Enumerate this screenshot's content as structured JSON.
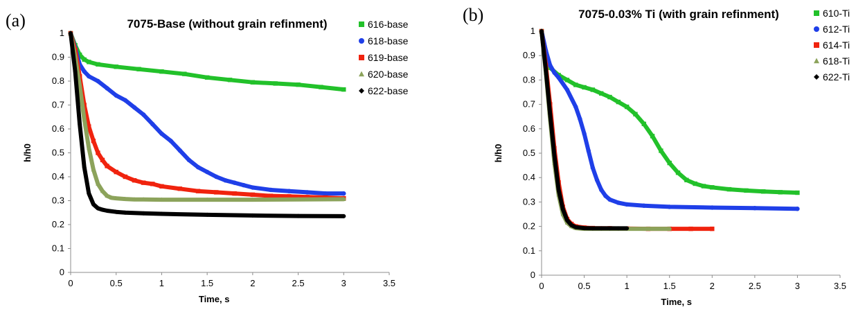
{
  "chart_data": [
    {
      "panel_label": "(a)",
      "type": "scatter",
      "title": "7075-Base (without grain refinment)",
      "xlabel": "Time, s",
      "ylabel": "h/h0",
      "xlim": [
        0,
        3.5
      ],
      "ylim": [
        0,
        1
      ],
      "xticks": [
        "0",
        "0.5",
        "1",
        "1.5",
        "2",
        "2.5",
        "3",
        "3.5"
      ],
      "yticks": [
        "0",
        "0.1",
        "0.2",
        "0.3",
        "0.4",
        "0.5",
        "0.6",
        "0.7",
        "0.8",
        "0.9",
        "1"
      ],
      "grid": false,
      "legend_position": "right",
      "series": [
        {
          "name": "616-base",
          "color": "#22c12a",
          "marker": "square",
          "x": [
            0,
            0.05,
            0.1,
            0.15,
            0.2,
            0.3,
            0.5,
            0.75,
            1.0,
            1.25,
            1.5,
            1.75,
            2.0,
            2.25,
            2.5,
            2.75,
            3.0
          ],
          "y": [
            1,
            0.95,
            0.91,
            0.89,
            0.88,
            0.87,
            0.86,
            0.85,
            0.84,
            0.83,
            0.815,
            0.805,
            0.795,
            0.79,
            0.785,
            0.775,
            0.765
          ]
        },
        {
          "name": "618-base",
          "color": "#1f3fe8",
          "marker": "circle",
          "x": [
            0,
            0.05,
            0.1,
            0.15,
            0.2,
            0.3,
            0.4,
            0.5,
            0.6,
            0.7,
            0.8,
            0.9,
            1.0,
            1.1,
            1.2,
            1.3,
            1.4,
            1.5,
            1.6,
            1.7,
            1.8,
            1.9,
            2.0,
            2.2,
            2.4,
            2.6,
            2.8,
            3.0
          ],
          "y": [
            1,
            0.94,
            0.87,
            0.84,
            0.82,
            0.8,
            0.77,
            0.74,
            0.72,
            0.69,
            0.66,
            0.62,
            0.58,
            0.55,
            0.51,
            0.47,
            0.44,
            0.42,
            0.4,
            0.385,
            0.375,
            0.365,
            0.355,
            0.345,
            0.34,
            0.335,
            0.33,
            0.33
          ]
        },
        {
          "name": "619-base",
          "color": "#f0230e",
          "marker": "square",
          "x": [
            0,
            0.05,
            0.1,
            0.15,
            0.2,
            0.25,
            0.3,
            0.35,
            0.4,
            0.5,
            0.6,
            0.7,
            0.8,
            0.9,
            1.0,
            1.2,
            1.4,
            1.6,
            1.8,
            2.0,
            2.2,
            2.4,
            2.6,
            2.8,
            3.0
          ],
          "y": [
            1,
            0.93,
            0.82,
            0.7,
            0.61,
            0.55,
            0.5,
            0.47,
            0.445,
            0.42,
            0.4,
            0.385,
            0.375,
            0.37,
            0.36,
            0.35,
            0.34,
            0.335,
            0.33,
            0.325,
            0.32,
            0.318,
            0.315,
            0.313,
            0.31
          ]
        },
        {
          "name": "620-base",
          "color": "#8ca35b",
          "marker": "triangle",
          "x": [
            0,
            0.05,
            0.1,
            0.15,
            0.2,
            0.25,
            0.3,
            0.35,
            0.4,
            0.45,
            0.5,
            0.6,
            0.7,
            0.8,
            1.0,
            1.5,
            2.0,
            2.5,
            3.0
          ],
          "y": [
            1,
            0.9,
            0.78,
            0.64,
            0.52,
            0.43,
            0.37,
            0.34,
            0.32,
            0.312,
            0.31,
            0.307,
            0.305,
            0.305,
            0.304,
            0.304,
            0.304,
            0.305,
            0.306
          ]
        },
        {
          "name": "622-base",
          "color": "#000000",
          "marker": "diamond",
          "x": [
            0,
            0.05,
            0.1,
            0.15,
            0.2,
            0.25,
            0.3,
            0.35,
            0.4,
            0.5,
            0.6,
            0.8,
            1.0,
            1.5,
            2.0,
            2.5,
            3.0
          ],
          "y": [
            1,
            0.84,
            0.62,
            0.44,
            0.33,
            0.285,
            0.268,
            0.262,
            0.258,
            0.253,
            0.25,
            0.247,
            0.245,
            0.241,
            0.238,
            0.236,
            0.235
          ]
        }
      ]
    },
    {
      "panel_label": "(b)",
      "type": "scatter",
      "title": "7075-0.03% Ti (with grain refinment)",
      "xlabel": "Time, s",
      "ylabel": "h/h0",
      "xlim": [
        0,
        3.5
      ],
      "ylim": [
        0,
        1
      ],
      "xticks": [
        "0",
        "0.5",
        "1",
        "1.5",
        "2",
        "2.5",
        "3",
        "3.5"
      ],
      "yticks": [
        "0",
        "0.1",
        "0.2",
        "0.3",
        "0.4",
        "0.5",
        "0.6",
        "0.7",
        "0.8",
        "0.9",
        "1"
      ],
      "grid": false,
      "legend_position": "right",
      "series": [
        {
          "name": "610-Ti",
          "color": "#22c12a",
          "marker": "square",
          "x": [
            0,
            0.05,
            0.1,
            0.2,
            0.3,
            0.4,
            0.5,
            0.6,
            0.7,
            0.8,
            0.9,
            1.0,
            1.1,
            1.2,
            1.3,
            1.4,
            1.5,
            1.6,
            1.7,
            1.8,
            1.9,
            2.0,
            2.2,
            2.4,
            2.6,
            2.8,
            3.0
          ],
          "y": [
            1,
            0.9,
            0.85,
            0.82,
            0.8,
            0.78,
            0.77,
            0.76,
            0.745,
            0.73,
            0.71,
            0.69,
            0.66,
            0.62,
            0.57,
            0.51,
            0.46,
            0.42,
            0.39,
            0.375,
            0.365,
            0.36,
            0.352,
            0.347,
            0.343,
            0.34,
            0.338
          ]
        },
        {
          "name": "612-Ti",
          "color": "#1f3fe8",
          "marker": "circle",
          "x": [
            0,
            0.05,
            0.1,
            0.15,
            0.2,
            0.3,
            0.4,
            0.45,
            0.5,
            0.55,
            0.6,
            0.65,
            0.7,
            0.75,
            0.8,
            0.9,
            1.0,
            1.2,
            1.5,
            2.0,
            2.5,
            3.0
          ],
          "y": [
            1,
            0.92,
            0.86,
            0.83,
            0.81,
            0.76,
            0.69,
            0.64,
            0.58,
            0.51,
            0.44,
            0.39,
            0.35,
            0.325,
            0.31,
            0.297,
            0.29,
            0.285,
            0.28,
            0.277,
            0.275,
            0.272
          ]
        },
        {
          "name": "614-Ti",
          "color": "#f0230e",
          "marker": "square",
          "x": [
            0,
            0.05,
            0.1,
            0.15,
            0.2,
            0.25,
            0.3,
            0.35,
            0.4,
            0.5,
            0.6,
            0.8,
            1.0,
            1.25,
            1.5,
            1.75,
            2.0
          ],
          "y": [
            1,
            0.86,
            0.7,
            0.52,
            0.38,
            0.28,
            0.23,
            0.21,
            0.2,
            0.195,
            0.193,
            0.192,
            0.191,
            0.19,
            0.19,
            0.19,
            0.19
          ]
        },
        {
          "name": "618-Ti",
          "color": "#8ca35b",
          "marker": "triangle",
          "x": [
            0,
            0.05,
            0.1,
            0.15,
            0.2,
            0.25,
            0.3,
            0.35,
            0.4,
            0.5,
            0.6,
            0.8,
            1.0,
            1.25,
            1.5
          ],
          "y": [
            1,
            0.83,
            0.64,
            0.46,
            0.33,
            0.25,
            0.215,
            0.2,
            0.193,
            0.19,
            0.19,
            0.19,
            0.19,
            0.19,
            0.19
          ]
        },
        {
          "name": "622-Ti",
          "color": "#000000",
          "marker": "diamond",
          "x": [
            0,
            0.05,
            0.1,
            0.15,
            0.2,
            0.25,
            0.3,
            0.35,
            0.4,
            0.5,
            0.6,
            0.7,
            0.8,
            0.9,
            1.0
          ],
          "y": [
            1,
            0.84,
            0.66,
            0.49,
            0.35,
            0.27,
            0.225,
            0.205,
            0.197,
            0.193,
            0.192,
            0.192,
            0.192,
            0.192,
            0.192
          ]
        }
      ]
    }
  ]
}
